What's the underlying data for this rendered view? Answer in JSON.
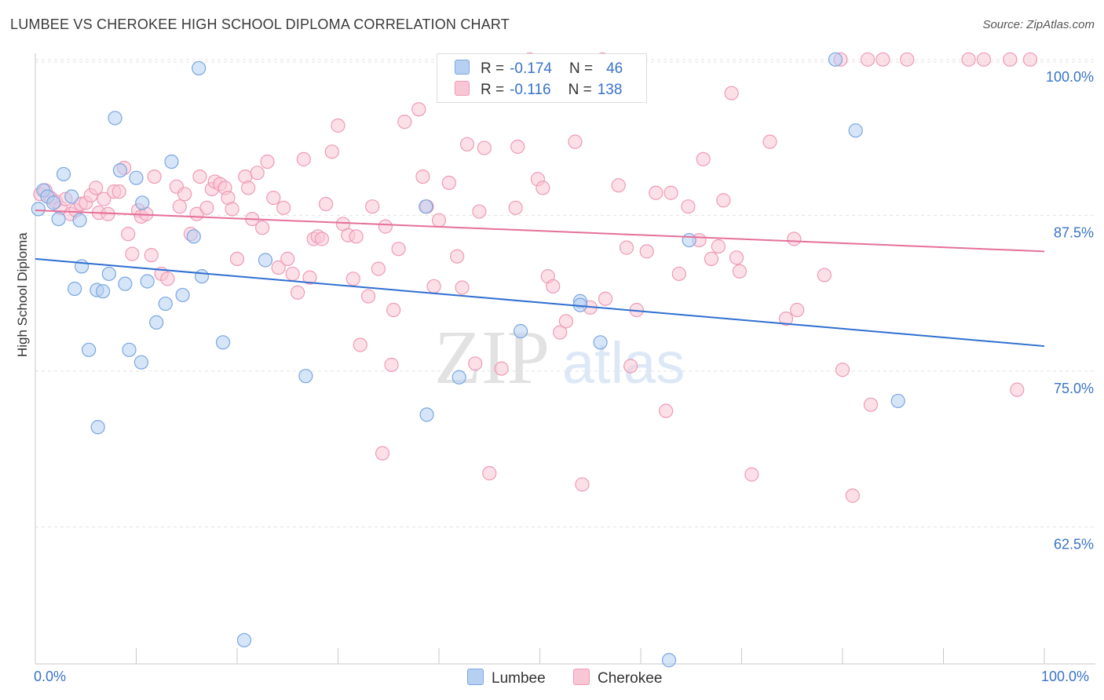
{
  "title": "LUMBEE VS CHEROKEE HIGH SCHOOL DIPLOMA CORRELATION CHART",
  "source": "Source: ZipAtlas.com",
  "watermark": {
    "zip": "ZIP",
    "atlas": "atlas"
  },
  "legend": {
    "r_label": "R =",
    "n_label": "N =",
    "entries": [
      {
        "r": "-0.174",
        "n": "46"
      },
      {
        "r": "-0.116",
        "n": "138"
      }
    ]
  },
  "colors": {
    "lumbee_fill": "#b7d0f2",
    "lumbee_stroke": "#7aa6e0",
    "lumbee_line": "#2f6fd0",
    "cherokee_fill": "#f9c6d6",
    "cherokee_stroke": "#ee9ab6",
    "cherokee_line": "#e5709a",
    "tick_text": "#3a73c8",
    "grid": "#e3e3e3"
  },
  "chart_data": {
    "type": "scatter",
    "title": "LUMBEE VS CHEROKEE HIGH SCHOOL DIPLOMA CORRELATION CHART",
    "xlabel": "",
    "ylabel": "High School Diploma",
    "xlim": [
      0,
      100
    ],
    "ylim": [
      51.5,
      101.5
    ],
    "x_tick_labels": [
      "0.0%",
      "100.0%"
    ],
    "y_ticks": [
      {
        "value": 100,
        "label": "100.0%"
      },
      {
        "value": 87.5,
        "label": "87.5%"
      },
      {
        "value": 75,
        "label": "75.0%"
      },
      {
        "value": 62.5,
        "label": "62.5%"
      }
    ],
    "grid": true,
    "series": [
      {
        "name": "Lumbee",
        "r": -0.174,
        "n": 46,
        "trend": {
          "x0": 0,
          "y0": 84.0,
          "x1": 100,
          "y1": 77.0
        },
        "points": [
          [
            0.3,
            88.0
          ],
          [
            0.8,
            89.5
          ],
          [
            1.2,
            89.0
          ],
          [
            1.8,
            88.5
          ],
          [
            2.3,
            87.2
          ],
          [
            2.8,
            90.8
          ],
          [
            3.6,
            89.0
          ],
          [
            4.4,
            87.1
          ],
          [
            4.6,
            83.4
          ],
          [
            3.9,
            81.6
          ],
          [
            6.1,
            81.5
          ],
          [
            6.7,
            81.4
          ],
          [
            7.3,
            82.8
          ],
          [
            5.3,
            76.7
          ],
          [
            6.2,
            70.5
          ],
          [
            7.9,
            95.3
          ],
          [
            8.4,
            91.1
          ],
          [
            8.9,
            82.0
          ],
          [
            9.3,
            76.7
          ],
          [
            10.0,
            90.5
          ],
          [
            10.5,
            75.7
          ],
          [
            10.6,
            88.5
          ],
          [
            11.1,
            82.2
          ],
          [
            12.0,
            78.9
          ],
          [
            12.9,
            80.4
          ],
          [
            13.5,
            91.8
          ],
          [
            14.6,
            81.1
          ],
          [
            15.7,
            85.8
          ],
          [
            16.2,
            99.3
          ],
          [
            16.5,
            82.6
          ],
          [
            18.6,
            77.3
          ],
          [
            20.7,
            53.4
          ],
          [
            22.8,
            83.9
          ],
          [
            26.8,
            74.6
          ],
          [
            38.8,
            71.5
          ],
          [
            38.7,
            88.2
          ],
          [
            42.0,
            74.5
          ],
          [
            48.1,
            78.2
          ],
          [
            54.0,
            80.6
          ],
          [
            54.0,
            80.3
          ],
          [
            56.0,
            77.3
          ],
          [
            62.8,
            51.8
          ],
          [
            64.8,
            85.5
          ],
          [
            79.3,
            100.0
          ],
          [
            81.3,
            94.3
          ],
          [
            85.5,
            72.6
          ]
        ]
      },
      {
        "name": "Cherokee",
        "r": -0.116,
        "n": 138,
        "trend": {
          "x0": 0,
          "y0": 87.9,
          "x1": 100,
          "y1": 84.6
        },
        "points": [
          [
            0.5,
            89.2
          ],
          [
            1.0,
            89.5
          ],
          [
            1.5,
            88.9
          ],
          [
            2.0,
            88.6
          ],
          [
            2.5,
            88.1
          ],
          [
            3.0,
            88.8
          ],
          [
            3.5,
            87.6
          ],
          [
            4.0,
            87.9
          ],
          [
            4.5,
            88.4
          ],
          [
            5.0,
            88.5
          ],
          [
            5.5,
            89.1
          ],
          [
            6.0,
            89.7
          ],
          [
            6.3,
            87.7
          ],
          [
            6.8,
            88.8
          ],
          [
            7.2,
            87.6
          ],
          [
            7.8,
            89.4
          ],
          [
            8.3,
            89.4
          ],
          [
            8.8,
            91.3
          ],
          [
            9.2,
            86.0
          ],
          [
            9.6,
            84.4
          ],
          [
            10.2,
            87.9
          ],
          [
            10.5,
            87.4
          ],
          [
            11.0,
            87.6
          ],
          [
            11.5,
            84.3
          ],
          [
            11.8,
            90.6
          ],
          [
            12.5,
            82.8
          ],
          [
            13.1,
            82.4
          ],
          [
            14.0,
            89.8
          ],
          [
            14.3,
            88.2
          ],
          [
            14.8,
            89.2
          ],
          [
            15.4,
            86.0
          ],
          [
            16.0,
            87.6
          ],
          [
            16.3,
            90.6
          ],
          [
            17.0,
            88.1
          ],
          [
            17.5,
            89.6
          ],
          [
            17.8,
            90.2
          ],
          [
            18.3,
            90.0
          ],
          [
            18.8,
            89.7
          ],
          [
            19.1,
            88.9
          ],
          [
            19.5,
            88.0
          ],
          [
            20.0,
            84.0
          ],
          [
            20.8,
            90.6
          ],
          [
            21.1,
            89.7
          ],
          [
            21.5,
            87.2
          ],
          [
            22.0,
            90.9
          ],
          [
            22.5,
            86.5
          ],
          [
            23.0,
            91.8
          ],
          [
            23.6,
            88.9
          ],
          [
            24.1,
            83.3
          ],
          [
            24.6,
            88.1
          ],
          [
            25.0,
            84.0
          ],
          [
            25.5,
            82.8
          ],
          [
            26.0,
            81.3
          ],
          [
            26.6,
            92.0
          ],
          [
            27.2,
            82.5
          ],
          [
            27.6,
            85.6
          ],
          [
            28.0,
            85.8
          ],
          [
            28.4,
            85.6
          ],
          [
            28.8,
            88.4
          ],
          [
            29.4,
            92.6
          ],
          [
            30.0,
            94.7
          ],
          [
            30.5,
            86.8
          ],
          [
            31.0,
            85.9
          ],
          [
            31.5,
            82.4
          ],
          [
            31.8,
            85.8
          ],
          [
            32.2,
            77.1
          ],
          [
            33.0,
            81.0
          ],
          [
            33.4,
            88.2
          ],
          [
            34.0,
            83.2
          ],
          [
            34.4,
            68.4
          ],
          [
            34.7,
            86.6
          ],
          [
            35.5,
            79.9
          ],
          [
            35.3,
            75.5
          ],
          [
            36.0,
            84.8
          ],
          [
            36.6,
            95.0
          ],
          [
            38.0,
            96.0
          ],
          [
            38.4,
            90.6
          ],
          [
            38.8,
            88.2
          ],
          [
            39.5,
            81.8
          ],
          [
            40.0,
            87.1
          ],
          [
            41.0,
            90.1
          ],
          [
            41.8,
            84.2
          ],
          [
            42.3,
            81.7
          ],
          [
            42.8,
            93.2
          ],
          [
            43.6,
            75.6
          ],
          [
            44.0,
            87.8
          ],
          [
            44.5,
            92.9
          ],
          [
            45.0,
            66.8
          ],
          [
            46.2,
            75.2
          ],
          [
            47.6,
            88.1
          ],
          [
            47.8,
            93.0
          ],
          [
            49.0,
            100.0
          ],
          [
            49.8,
            90.4
          ],
          [
            50.3,
            89.7
          ],
          [
            50.8,
            82.6
          ],
          [
            51.3,
            81.8
          ],
          [
            52.0,
            78.1
          ],
          [
            52.6,
            79.0
          ],
          [
            53.5,
            93.4
          ],
          [
            54.2,
            65.9
          ],
          [
            55.0,
            80.1
          ],
          [
            56.5,
            80.8
          ],
          [
            56.2,
            100.0
          ],
          [
            57.8,
            89.9
          ],
          [
            58.6,
            84.9
          ],
          [
            59.0,
            75.4
          ],
          [
            59.6,
            79.9
          ],
          [
            60.6,
            84.6
          ],
          [
            61.5,
            89.3
          ],
          [
            62.5,
            71.8
          ],
          [
            63.0,
            89.3
          ],
          [
            63.8,
            82.8
          ],
          [
            64.7,
            88.2
          ],
          [
            65.8,
            85.5
          ],
          [
            66.2,
            92.0
          ],
          [
            67.0,
            84.0
          ],
          [
            67.7,
            85.0
          ],
          [
            68.2,
            88.7
          ],
          [
            69.0,
            97.3
          ],
          [
            69.5,
            84.1
          ],
          [
            69.8,
            83.0
          ],
          [
            71.0,
            66.7
          ],
          [
            72.8,
            93.4
          ],
          [
            74.4,
            79.2
          ],
          [
            75.2,
            85.6
          ],
          [
            75.5,
            79.9
          ],
          [
            78.2,
            82.7
          ],
          [
            79.8,
            100.0
          ],
          [
            80.0,
            75.1
          ],
          [
            81.0,
            65.0
          ],
          [
            82.8,
            72.3
          ],
          [
            82.5,
            100.0
          ],
          [
            84.0,
            100.0
          ],
          [
            86.4,
            100.0
          ],
          [
            92.5,
            100.0
          ],
          [
            94.0,
            100.0
          ],
          [
            96.6,
            100.0
          ],
          [
            98.6,
            100.0
          ],
          [
            97.3,
            73.5
          ]
        ]
      }
    ]
  },
  "bottom_legend": [
    "Lumbee",
    "Cherokee"
  ]
}
